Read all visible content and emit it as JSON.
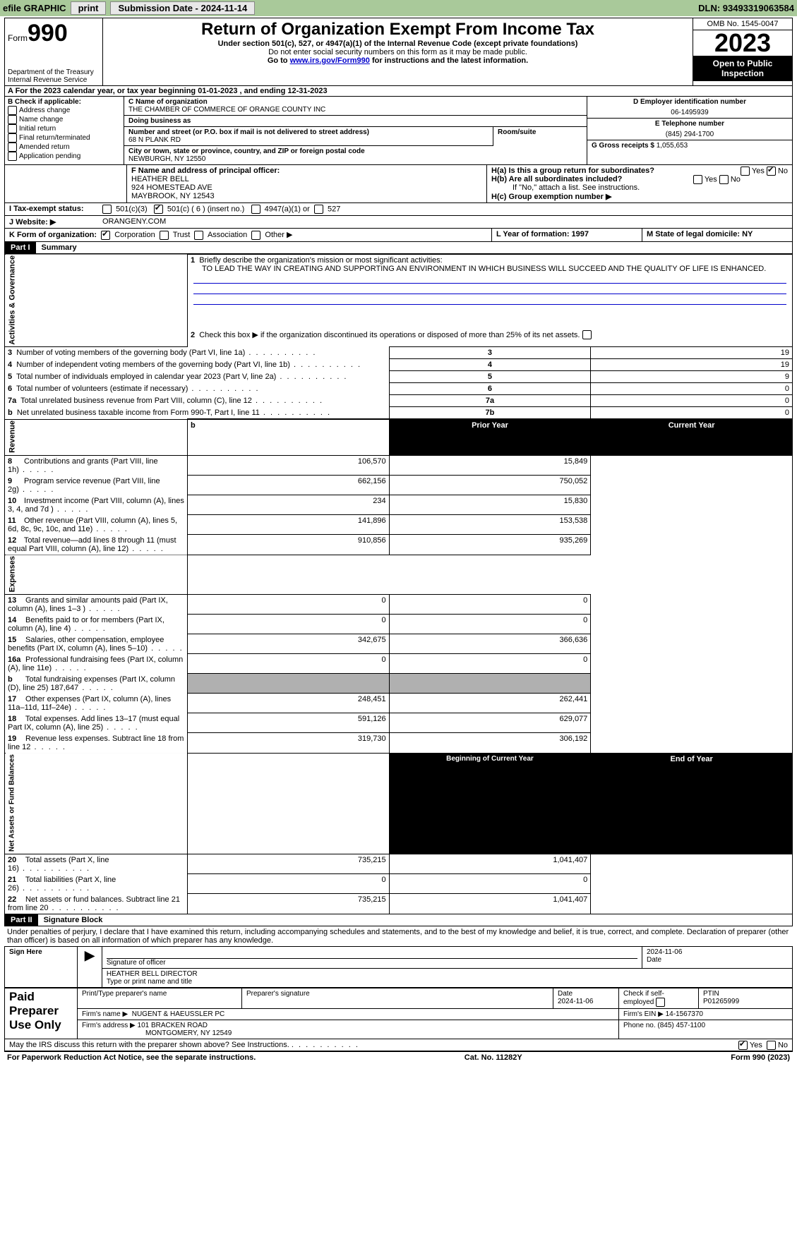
{
  "topbar": {
    "efile": "efile GRAPHIC",
    "print": "print",
    "submission_label": "Submission Date - 2024-11-14",
    "dln": "DLN: 93493319063584"
  },
  "header": {
    "form_prefix": "Form",
    "form_number": "990",
    "dept": "Department of the Treasury\nInternal Revenue Service",
    "title": "Return of Organization Exempt From Income Tax",
    "sub1": "Under section 501(c), 527, or 4947(a)(1) of the Internal Revenue Code (except private foundations)",
    "sub2": "Do not enter social security numbers on this form as it may be made public.",
    "sub3_pre": "Go to ",
    "sub3_link": "www.irs.gov/Form990",
    "sub3_post": " for instructions and the latest information.",
    "omb": "OMB No. 1545-0047",
    "year": "2023",
    "open": "Open to Public Inspection"
  },
  "row_a": "A  For the 2023 calendar year, or tax year beginning 01-01-2023    , and ending 12-31-2023",
  "box_b": {
    "title": "B Check if applicable:",
    "items": [
      "Address change",
      "Name change",
      "Initial return",
      "Final return/terminated",
      "Amended return",
      "Application pending"
    ]
  },
  "box_c": {
    "name_lbl": "C Name of organization",
    "name": "THE CHAMBER OF COMMERCE OF ORANGE COUNTY INC",
    "dba_lbl": "Doing business as",
    "dba": "",
    "addr_lbl": "Number and street (or P.O. box if mail is not delivered to street address)",
    "room_lbl": "Room/suite",
    "addr": "68 N PLANK RD",
    "city_lbl": "City or town, state or province, country, and ZIP or foreign postal code",
    "city": "NEWBURGH, NY  12550"
  },
  "box_d": {
    "lbl": "D Employer identification number",
    "val": "06-1495939"
  },
  "box_e": {
    "lbl": "E Telephone number",
    "val": "(845) 294-1700"
  },
  "box_g": {
    "lbl": "G Gross receipts $",
    "val": "1,055,653"
  },
  "box_f": {
    "lbl": "F  Name and address of principal officer:",
    "name": "HEATHER BELL",
    "addr1": "924 HOMESTEAD AVE",
    "addr2": "MAYBROOK, NY  12543"
  },
  "box_h": {
    "a": "H(a)  Is this a group return for subordinates?",
    "yes": "Yes",
    "no": "No",
    "b": "H(b)  Are all subordinates included?",
    "b2": "If \"No,\" attach a list. See instructions.",
    "c": "H(c)  Group exemption number ▶"
  },
  "row_i": {
    "lbl": "I    Tax-exempt status:",
    "o1": "501(c)(3)",
    "o2": "501(c) ( 6 ) (insert no.)",
    "o3": "4947(a)(1) or",
    "o4": "527"
  },
  "row_j": {
    "lbl": "J    Website: ▶",
    "val": "ORANGENY.COM"
  },
  "row_k": {
    "lbl": "K Form of organization:",
    "o1": "Corporation",
    "o2": "Trust",
    "o3": "Association",
    "o4": "Other ▶"
  },
  "row_l": {
    "lbl": "L Year of formation: 1997"
  },
  "row_m": {
    "lbl": "M State of legal domicile: NY"
  },
  "part1": {
    "tag": "Part I",
    "title": "Summary"
  },
  "summary": {
    "l1_lbl": "Briefly describe the organization's mission or most significant activities:",
    "l1_val": "TO LEAD THE WAY IN CREATING AND SUPPORTING AN ENVIRONMENT IN WHICH BUSINESS WILL SUCCEED AND THE QUALITY OF LIFE IS ENHANCED.",
    "l2": "Check this box ▶        if the organization discontinued its operations or disposed of more than 25% of its net assets.",
    "rows_ag": [
      {
        "n": "3",
        "t": "Number of voting members of the governing body (Part VI, line 1a)",
        "k": "3",
        "v": "19"
      },
      {
        "n": "4",
        "t": "Number of independent voting members of the governing body (Part VI, line 1b)",
        "k": "4",
        "v": "19"
      },
      {
        "n": "5",
        "t": "Total number of individuals employed in calendar year 2023 (Part V, line 2a)",
        "k": "5",
        "v": "9"
      },
      {
        "n": "6",
        "t": "Total number of volunteers (estimate if necessary)",
        "k": "6",
        "v": "0"
      },
      {
        "n": "7a",
        "t": "Total unrelated business revenue from Part VIII, column (C), line 12",
        "k": "7a",
        "v": "0"
      },
      {
        "n": "b",
        "t": "Net unrelated business taxable income from Form 990-T, Part I, line 11",
        "k": "7b",
        "v": "0"
      }
    ],
    "hdr_prior": "Prior Year",
    "hdr_curr": "Current Year",
    "rows_rev": [
      {
        "n": "8",
        "t": "Contributions and grants (Part VIII, line 1h)",
        "p": "106,570",
        "c": "15,849"
      },
      {
        "n": "9",
        "t": "Program service revenue (Part VIII, line 2g)",
        "p": "662,156",
        "c": "750,052"
      },
      {
        "n": "10",
        "t": "Investment income (Part VIII, column (A), lines 3, 4, and 7d )",
        "p": "234",
        "c": "15,830"
      },
      {
        "n": "11",
        "t": "Other revenue (Part VIII, column (A), lines 5, 6d, 8c, 9c, 10c, and 11e)",
        "p": "141,896",
        "c": "153,538"
      },
      {
        "n": "12",
        "t": "Total revenue—add lines 8 through 11 (must equal Part VIII, column (A), line 12)",
        "p": "910,856",
        "c": "935,269"
      }
    ],
    "rows_exp": [
      {
        "n": "13",
        "t": "Grants and similar amounts paid (Part IX, column (A), lines 1–3 )",
        "p": "0",
        "c": "0"
      },
      {
        "n": "14",
        "t": "Benefits paid to or for members (Part IX, column (A), line 4)",
        "p": "0",
        "c": "0"
      },
      {
        "n": "15",
        "t": "Salaries, other compensation, employee benefits (Part IX, column (A), lines 5–10)",
        "p": "342,675",
        "c": "366,636"
      },
      {
        "n": "16a",
        "t": "Professional fundraising fees (Part IX, column (A), line 11e)",
        "p": "0",
        "c": "0"
      },
      {
        "n": "b",
        "t": "Total fundraising expenses (Part IX, column (D), line 25) 187,647",
        "p": "GREY",
        "c": "GREY"
      },
      {
        "n": "17",
        "t": "Other expenses (Part IX, column (A), lines 11a–11d, 11f–24e)",
        "p": "248,451",
        "c": "262,441"
      },
      {
        "n": "18",
        "t": "Total expenses. Add lines 13–17 (must equal Part IX, column (A), line 25)",
        "p": "591,126",
        "c": "629,077"
      },
      {
        "n": "19",
        "t": "Revenue less expenses. Subtract line 18 from line 12",
        "p": "319,730",
        "c": "306,192"
      }
    ],
    "hdr_beg": "Beginning of Current Year",
    "hdr_end": "End of Year",
    "rows_na": [
      {
        "n": "20",
        "t": "Total assets (Part X, line 16)",
        "p": "735,215",
        "c": "1,041,407"
      },
      {
        "n": "21",
        "t": "Total liabilities (Part X, line 26)",
        "p": "0",
        "c": "0"
      },
      {
        "n": "22",
        "t": "Net assets or fund balances. Subtract line 21 from line 20",
        "p": "735,215",
        "c": "1,041,407"
      }
    ],
    "side_ag": "Activities & Governance",
    "side_rev": "Revenue",
    "side_exp": "Expenses",
    "side_na": "Net Assets or Fund Balances"
  },
  "part2": {
    "tag": "Part II",
    "title": "Signature Block"
  },
  "perjury": "Under penalties of perjury, I declare that I have examined this return, including accompanying schedules and statements, and to the best of my knowledge and belief, it is true, correct, and complete. Declaration of preparer (other than officer) is based on all information of which preparer has any knowledge.",
  "sign": {
    "here": "Sign Here",
    "sig_off": "Signature of officer",
    "name": "HEATHER BELL  DIRECTOR",
    "type_lbl": "Type or print name and title",
    "date_lbl": "Date",
    "date": "2024-11-06"
  },
  "paid": {
    "title": "Paid Preparer Use Only",
    "h1": "Print/Type preparer's name",
    "h2": "Preparer's signature",
    "h3": "Date",
    "h3v": "2024-11-06",
    "h4": "Check         if self-employed",
    "h5": "PTIN",
    "h5v": "P01265999",
    "firm_name_lbl": "Firm's name    ▶",
    "firm_name": "NUGENT & HAEUSSLER PC",
    "firm_ein_lbl": "Firm's EIN ▶",
    "firm_ein": "14-1567370",
    "firm_addr_lbl": "Firm's address ▶",
    "firm_addr1": "101 BRACKEN ROAD",
    "firm_addr2": "MONTGOMERY, NY  12549",
    "phone_lbl": "Phone no.",
    "phone": "(845) 457-1100"
  },
  "discuss": "May the IRS discuss this return with the preparer shown above? See Instructions.",
  "footer": {
    "l": "For Paperwork Reduction Act Notice, see the separate instructions.",
    "c": "Cat. No. 11282Y",
    "r": "Form 990 (2023)"
  }
}
